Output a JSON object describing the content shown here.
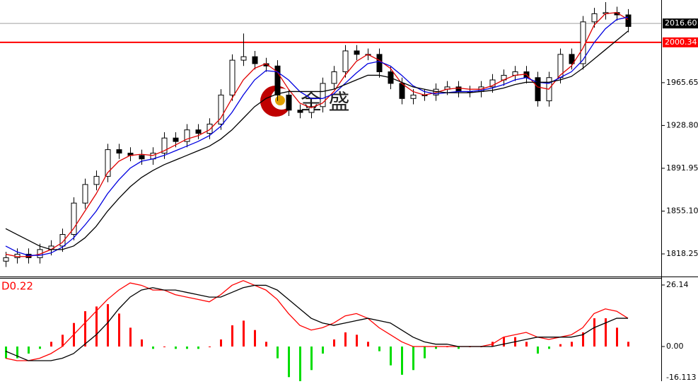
{
  "chart_data": [
    {
      "type": "candlestick",
      "watermark": "金 盛",
      "open": [
        1812,
        1815,
        1818,
        1815,
        1822,
        1825,
        1835,
        1862,
        1878,
        1885,
        1908,
        1905,
        1903,
        1900,
        1905,
        1918,
        1915,
        1925,
        1922,
        1930,
        1955,
        1985,
        1988,
        1982,
        1980,
        1955,
        1942,
        1940,
        1945,
        1965,
        1975,
        1993,
        1990,
        1990,
        1975,
        1965,
        1952,
        1955,
        1955,
        1960,
        1962,
        1958,
        1958,
        1962,
        1968,
        1972,
        1975,
        1970,
        1950,
        1970,
        1990,
        1982,
        2018,
        2025,
        2026,
        2024
      ],
      "high": [
        1820,
        1823,
        1823,
        1827,
        1830,
        1840,
        1867,
        1883,
        1890,
        1913,
        1913,
        1910,
        1908,
        1910,
        1923,
        1923,
        1930,
        1930,
        1935,
        1960,
        1990,
        2008,
        1993,
        1987,
        1985,
        1960,
        1947,
        1948,
        1970,
        1980,
        1998,
        1998,
        1995,
        1995,
        1980,
        1970,
        1960,
        1960,
        1965,
        1967,
        1967,
        1963,
        1967,
        1973,
        1977,
        1980,
        1980,
        1975,
        1975,
        1995,
        1995,
        2023,
        2030,
        2035,
        2031,
        2029
      ],
      "low": [
        1807,
        1810,
        1810,
        1810,
        1817,
        1820,
        1830,
        1857,
        1873,
        1880,
        1900,
        1898,
        1895,
        1895,
        1900,
        1910,
        1910,
        1917,
        1917,
        1925,
        1950,
        1980,
        1977,
        1975,
        1950,
        1937,
        1935,
        1935,
        1940,
        1960,
        1970,
        1985,
        1985,
        1970,
        1960,
        1947,
        1947,
        1950,
        1950,
        1955,
        1953,
        1953,
        1953,
        1957,
        1963,
        1967,
        1965,
        1945,
        1945,
        1965,
        1977,
        1977,
        2013,
        2020,
        2019,
        2009
      ],
      "close": [
        1815,
        1818,
        1815,
        1822,
        1825,
        1835,
        1862,
        1878,
        1885,
        1908,
        1905,
        1903,
        1900,
        1905,
        1918,
        1915,
        1925,
        1922,
        1930,
        1955,
        1985,
        1988,
        1982,
        1980,
        1955,
        1942,
        1940,
        1945,
        1965,
        1975,
        1993,
        1990,
        1990,
        1975,
        1965,
        1952,
        1955,
        1955,
        1960,
        1962,
        1958,
        1958,
        1962,
        1968,
        1972,
        1975,
        1970,
        1950,
        1970,
        1990,
        1982,
        2018,
        2025,
        2026,
        2024,
        2014
      ],
      "series": [
        {
          "color": "#e00000",
          "values": [
            1818,
            1816,
            1816,
            1818,
            1822,
            1828,
            1840,
            1855,
            1870,
            1888,
            1898,
            1903,
            1904,
            1903,
            1907,
            1912,
            1917,
            1920,
            1925,
            1935,
            1952,
            1968,
            1978,
            1982,
            1975,
            1960,
            1948,
            1944,
            1948,
            1958,
            1972,
            1984,
            1990,
            1985,
            1978,
            1965,
            1958,
            1955,
            1957,
            1960,
            1961,
            1960,
            1960,
            1963,
            1968,
            1972,
            1973,
            1962,
            1960,
            1972,
            1980,
            1995,
            2015,
            2025,
            2026,
            2020
          ]
        },
        {
          "color": "#0000e0",
          "values": [
            1825,
            1820,
            1817,
            1817,
            1819,
            1824,
            1832,
            1843,
            1855,
            1870,
            1882,
            1892,
            1898,
            1900,
            1903,
            1907,
            1911,
            1915,
            1920,
            1928,
            1940,
            1955,
            1968,
            1976,
            1975,
            1968,
            1958,
            1952,
            1952,
            1956,
            1965,
            1974,
            1982,
            1984,
            1980,
            1972,
            1963,
            1958,
            1956,
            1957,
            1958,
            1958,
            1959,
            1961,
            1964,
            1968,
            1970,
            1966,
            1965,
            1970,
            1975,
            1985,
            2000,
            2012,
            2020,
            2022
          ]
        },
        {
          "color": "#000000",
          "values": [
            1840,
            1835,
            1830,
            1825,
            1822,
            1822,
            1825,
            1832,
            1842,
            1855,
            1866,
            1876,
            1884,
            1890,
            1895,
            1899,
            1903,
            1907,
            1911,
            1917,
            1925,
            1935,
            1945,
            1952,
            1956,
            1958,
            1958,
            1958,
            1958,
            1960,
            1964,
            1968,
            1972,
            1972,
            1970,
            1966,
            1962,
            1960,
            1958,
            1957,
            1957,
            1957,
            1958,
            1959,
            1961,
            1964,
            1966,
            1966,
            1966,
            1968,
            1971,
            1978,
            1986,
            1994,
            2002,
            2010
          ]
        }
      ],
      "ylim": [
        1799.4,
        2036.8
      ],
      "yticks": [
        1818.25,
        {
          "value": 1855.1,
          "label": "1855.10"
        },
        1891.95,
        {
          "value": 1928.8,
          "label": "1928.80"
        },
        1965.65
      ],
      "price_lines": [
        {
          "value": 2016.6,
          "label": "2016.60",
          "color": "#a0a0a0",
          "label_color": "#000000"
        },
        {
          "value": 2000.34,
          "label": "2000.34",
          "color": "#ff0000",
          "label_color": "#ff0000"
        }
      ]
    },
    {
      "type": "macd",
      "title": "D0.22",
      "up_color": "#ff0000",
      "down_color": "#00dd00",
      "values": [
        -5,
        -5,
        -3,
        -1,
        2,
        5,
        10,
        15,
        17,
        18,
        14,
        8,
        3,
        -1,
        0,
        -1,
        -1,
        -1,
        0,
        3,
        9,
        11,
        7,
        2,
        -5,
        -13,
        -15,
        -10,
        -3,
        3,
        6,
        5,
        2,
        -2,
        -8,
        -12,
        -10,
        -5,
        -1,
        0,
        -1,
        0,
        0,
        2,
        4,
        4,
        2,
        -3,
        -1,
        1,
        2,
        6,
        12,
        12,
        8,
        2
      ],
      "series": [
        {
          "color": "#ff0000",
          "values": [
            -5,
            -6,
            -6,
            -5,
            -3,
            0,
            5,
            10,
            15,
            20,
            24,
            27,
            26,
            24,
            24,
            22,
            21,
            20,
            19,
            22,
            26,
            28,
            26,
            24,
            20,
            14,
            9,
            7,
            8,
            10,
            13,
            14,
            12,
            8,
            5,
            2,
            0,
            0,
            0,
            0,
            0,
            0,
            0,
            1,
            4,
            5,
            6,
            4,
            3,
            4,
            5,
            8,
            14,
            16,
            15,
            12
          ]
        },
        {
          "color": "#000000",
          "values": [
            -2,
            -4,
            -6,
            -6,
            -6,
            -5,
            -3,
            1,
            5,
            10,
            16,
            21,
            24,
            25,
            24,
            24,
            23,
            22,
            21,
            21,
            23,
            25,
            26,
            26,
            24,
            20,
            16,
            12,
            10,
            9,
            10,
            11,
            12,
            11,
            10,
            7,
            4,
            2,
            1,
            1,
            0,
            0,
            0,
            0,
            1,
            2,
            3,
            4,
            4,
            4,
            4,
            5,
            8,
            10,
            12,
            12
          ]
        }
      ],
      "ylim": [
        -14.72,
        29.14
      ],
      "yticks": [
        26.14,
        {
          "value": 0,
          "label": "0.00"
        },
        {
          "value": -16.113,
          "label": "-16.113"
        }
      ]
    }
  ]
}
